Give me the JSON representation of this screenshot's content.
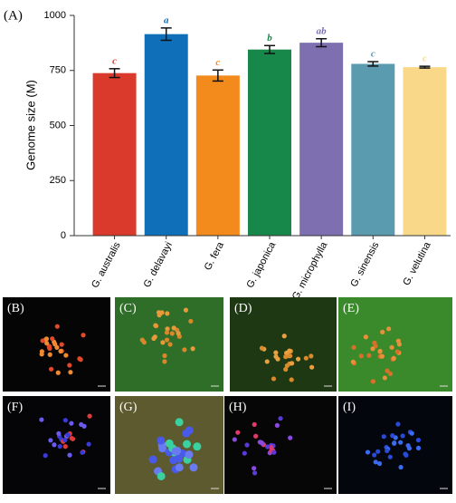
{
  "chart_data": {
    "type": "bar",
    "panel_label": "(A)",
    "y_label": "Genome size (M)",
    "categories": [
      "G. australis",
      "G. delavayi",
      "G. fera",
      "G. japonica",
      "G. microphylla",
      "G. sinensis",
      "G. velutina"
    ],
    "values": [
      738,
      915,
      727,
      845,
      876,
      780,
      765
    ],
    "errors": [
      20,
      28,
      25,
      18,
      18,
      10,
      4
    ],
    "letters": [
      "c",
      "a",
      "c",
      "b",
      "ab",
      "c",
      "c"
    ],
    "colors": [
      "#d93a2b",
      "#0f6fb8",
      "#f28a1c",
      "#17874a",
      "#7d6fb0",
      "#5a9bb0",
      "#fad88a"
    ],
    "ylim": [
      0,
      1000
    ],
    "yticks": [
      0,
      250,
      500,
      750,
      1000
    ]
  },
  "image_panels": [
    "(B)",
    "(C)",
    "(D)",
    "(E)",
    "(F)",
    "(G)",
    "(H)",
    "(I)"
  ]
}
